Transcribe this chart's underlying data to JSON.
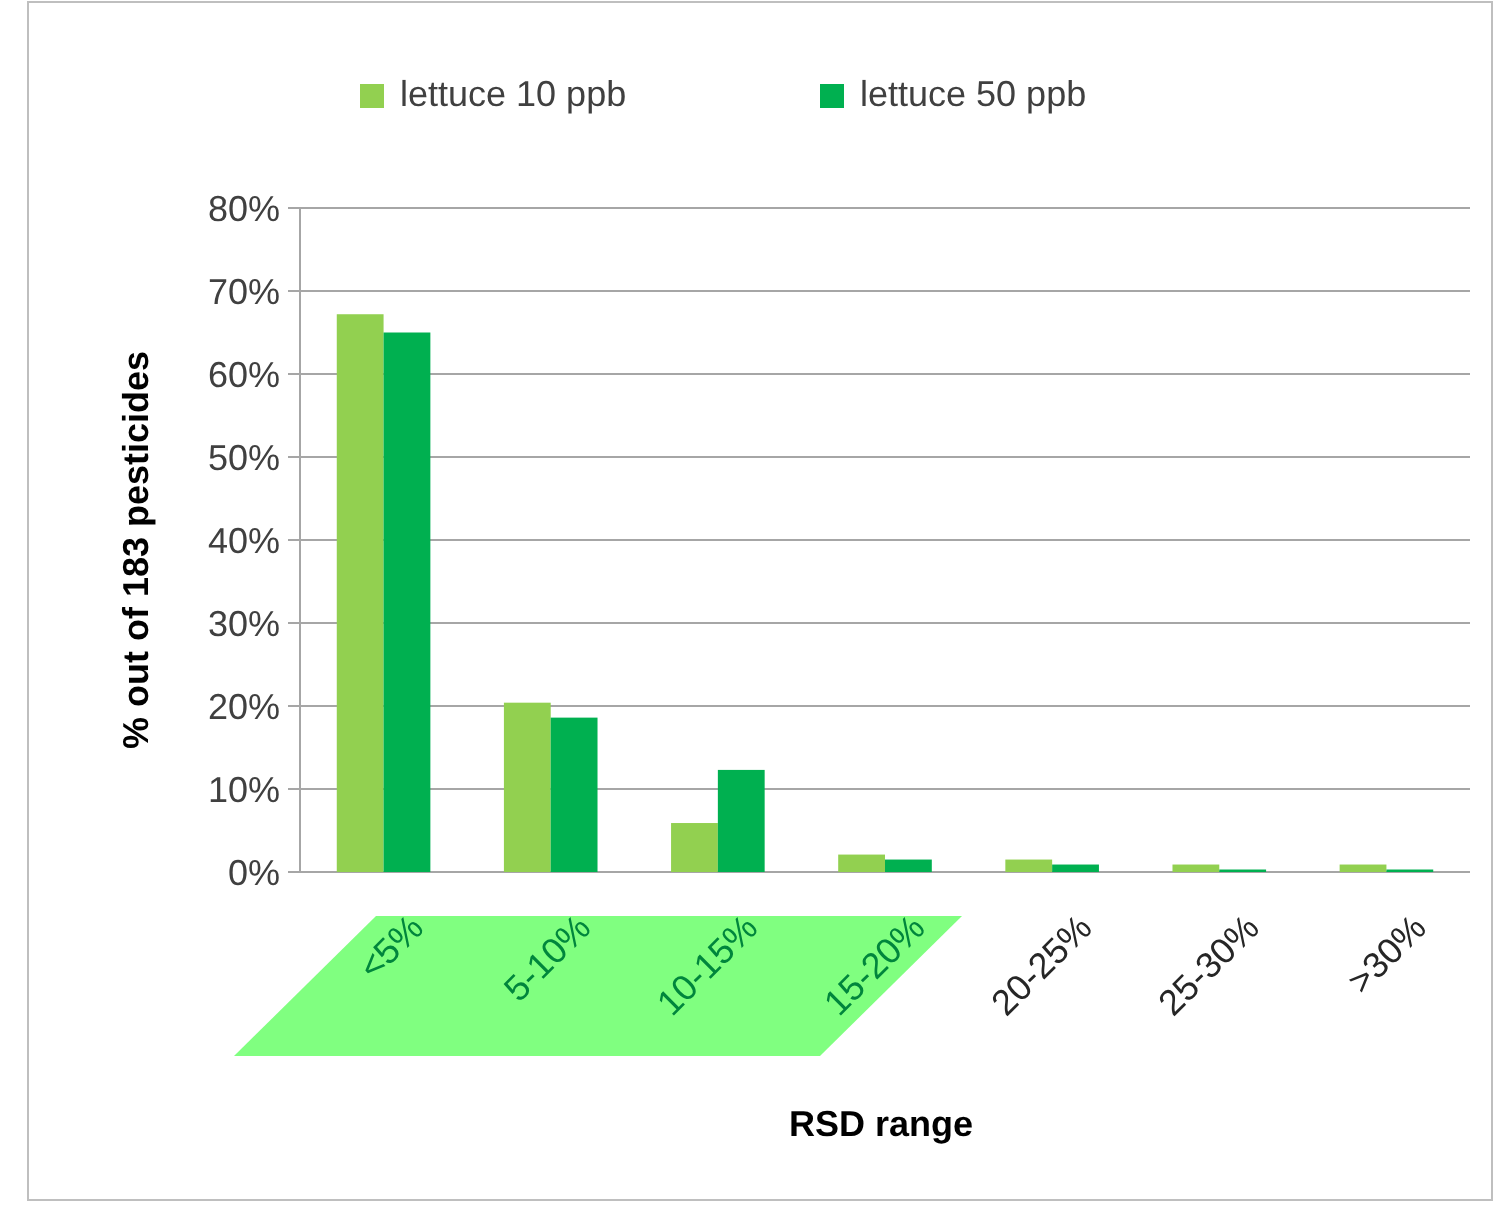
{
  "chart_data": {
    "type": "bar",
    "xlabel": "RSD range",
    "ylabel": "% out of 183 pesticides",
    "categories": [
      "<5%",
      "5-10%",
      "10-15%",
      "15-20%",
      "20-25%",
      "25-30%",
      ">30%"
    ],
    "series": [
      {
        "name": "lettuce 10 ppb",
        "color": "#92d050",
        "values": [
          67.2,
          20.4,
          5.9,
          2.1,
          1.5,
          0.9,
          0.9
        ]
      },
      {
        "name": "lettuce 50 ppb",
        "color": "#00b050",
        "values": [
          65,
          18.6,
          12.3,
          1.5,
          0.9,
          0.3,
          0.3
        ]
      }
    ],
    "ylim": [
      0,
      80
    ],
    "yticks": [
      {
        "value": 0,
        "label": "0%"
      },
      {
        "value": 10,
        "label": "10%"
      },
      {
        "value": 20,
        "label": "20%"
      },
      {
        "value": 30,
        "label": "30%"
      },
      {
        "value": 40,
        "label": "40%"
      },
      {
        "value": 50,
        "label": "50%"
      },
      {
        "value": 60,
        "label": "60%"
      },
      {
        "value": 70,
        "label": "70%"
      },
      {
        "value": 80,
        "label": "80%"
      }
    ],
    "grid": "y",
    "legend": "top"
  }
}
